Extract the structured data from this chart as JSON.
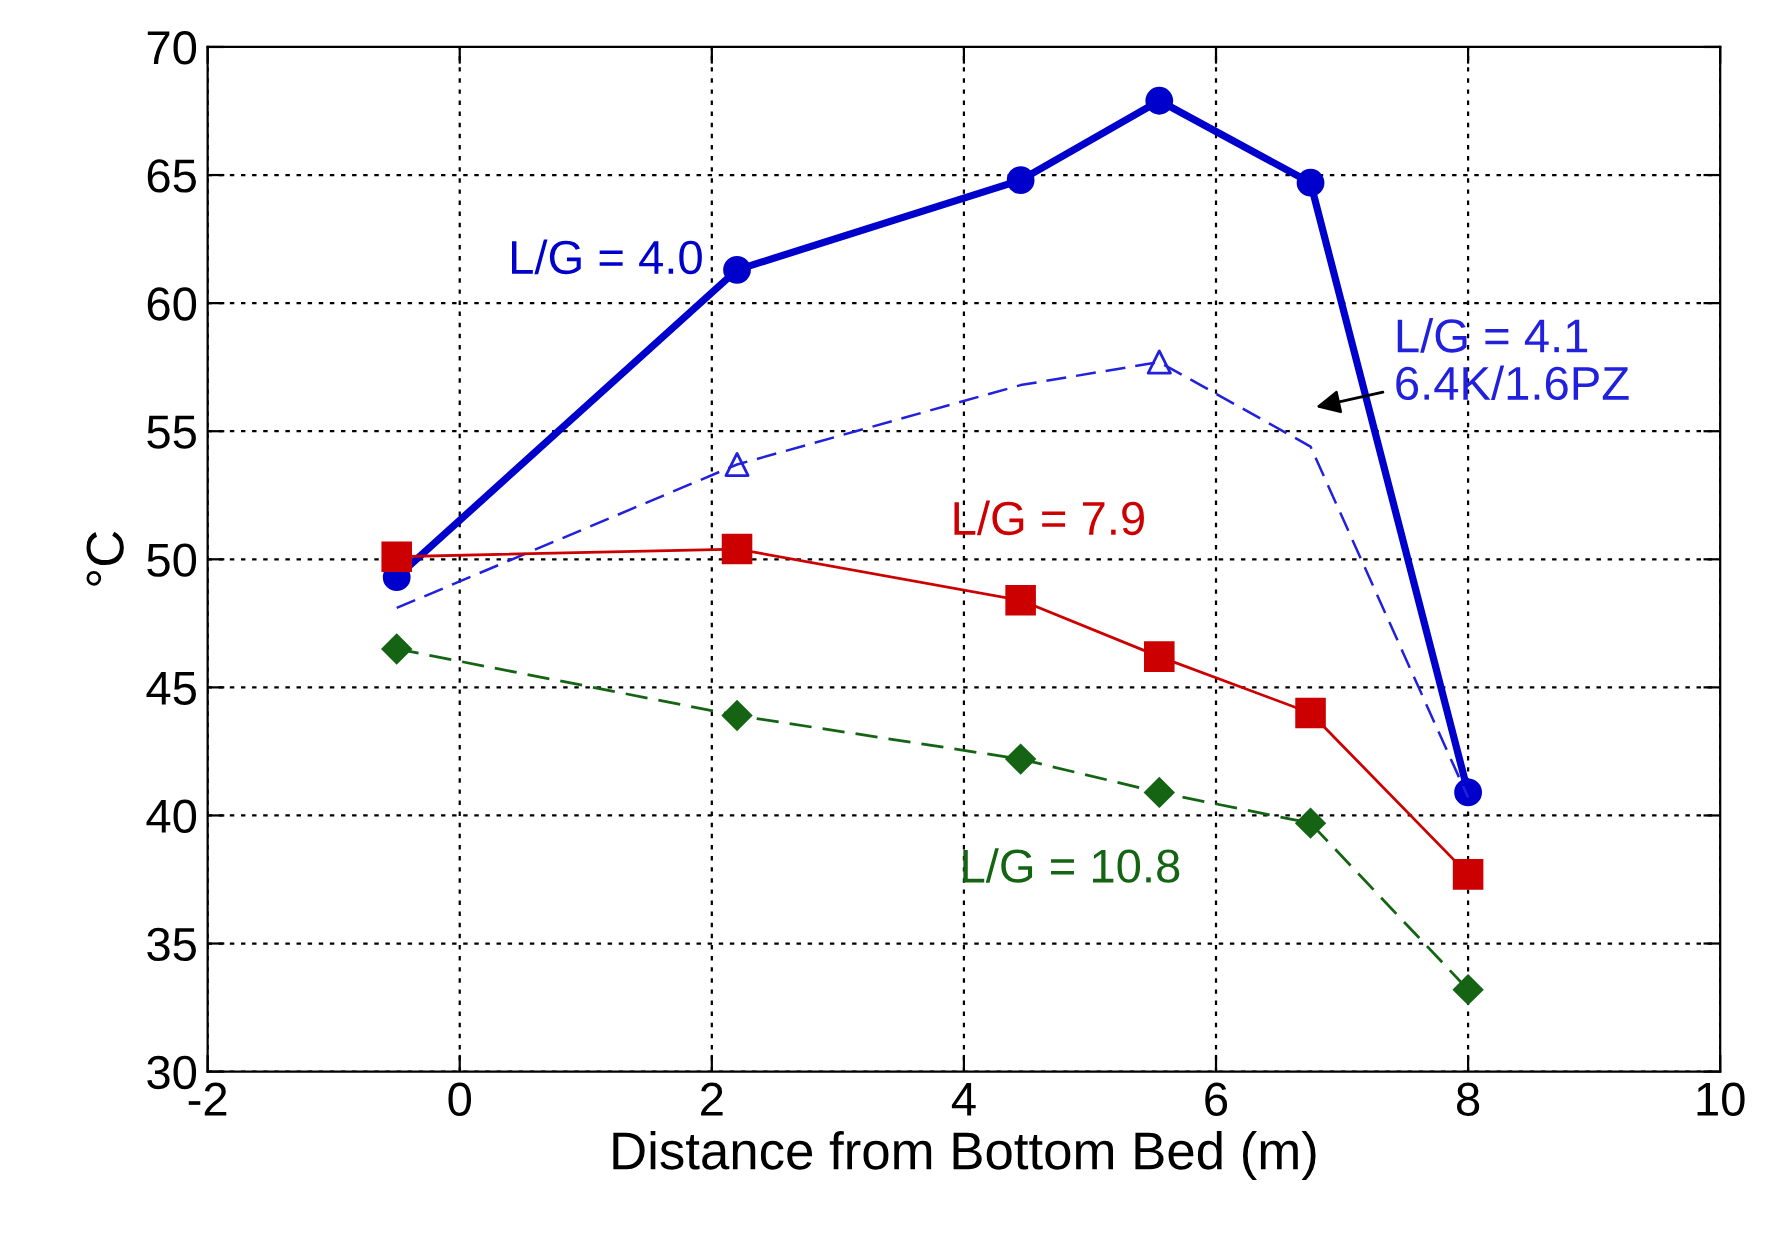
{
  "chart_data": {
    "type": "line",
    "xlabel": "Distance from Bottom Bed (m)",
    "ylabel": "°C",
    "xlim": [
      -2,
      10
    ],
    "xticks": [
      -2,
      0,
      2,
      4,
      6,
      8,
      10
    ],
    "ylim": [
      30,
      70
    ],
    "yticks": [
      30,
      35,
      40,
      45,
      50,
      55,
      60,
      65,
      70
    ],
    "grid": true,
    "legend": false,
    "series": [
      {
        "name": "L/G = 4.0",
        "color": "#0000cc",
        "marker": "circle",
        "line_style": "solid",
        "x": [
          -0.5,
          2.2,
          4.45,
          5.55,
          6.75,
          8
        ],
        "values": [
          49.3,
          61.3,
          64.8,
          67.9,
          64.7,
          40.9
        ]
      },
      {
        "name": "L/G = 4.1\n6.4K/1.6PZ",
        "color": "#2020dd",
        "marker": "none",
        "line_style": "dashed",
        "x": [
          -0.5,
          2.2,
          4.45,
          5.55,
          6.75,
          8
        ],
        "values": [
          48.1,
          53.7,
          56.8,
          57.7,
          54.4,
          40.7
        ]
      },
      {
        "type": "scatter",
        "color": "#2020dd",
        "marker": "triangle",
        "x": [
          2.2,
          5.55
        ],
        "values": [
          53.7,
          57.7
        ]
      },
      {
        "name": "L/G = 7.9",
        "color": "#cc0000",
        "marker": "square",
        "line_style": "solid",
        "x": [
          -0.5,
          2.2,
          4.45,
          5.55,
          6.75,
          8
        ],
        "values": [
          50.1,
          50.4,
          48.4,
          46.2,
          44.0,
          37.7
        ]
      },
      {
        "name": "L/G = 10.8",
        "color": "#146414",
        "marker": "diamond",
        "line_style": "dashed",
        "x": [
          -0.5,
          2.2,
          4.45,
          5.55,
          6.75,
          8
        ],
        "values": [
          46.5,
          43.9,
          42.2,
          40.9,
          39.7,
          33.2
        ]
      }
    ]
  }
}
